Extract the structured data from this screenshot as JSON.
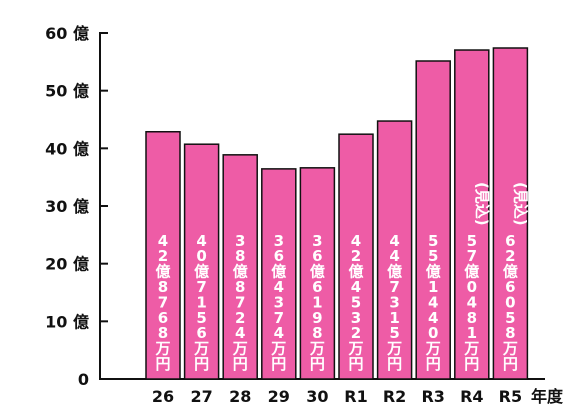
{
  "chart_data": {
    "type": "bar",
    "title": "",
    "xlabel": "年度",
    "ylabel": "",
    "ylim": [
      0,
      60
    ],
    "yticks": [
      {
        "value": 0,
        "label": "0"
      },
      {
        "value": 10,
        "label": "10 億"
      },
      {
        "value": 20,
        "label": "20 億"
      },
      {
        "value": 30,
        "label": "30 億"
      },
      {
        "value": 40,
        "label": "40 億"
      },
      {
        "value": 50,
        "label": "50 億"
      },
      {
        "value": 60,
        "label": "60 億"
      }
    ],
    "categories": [
      "26",
      "27",
      "28",
      "29",
      "30",
      "R1",
      "R2",
      "R3",
      "R4",
      "R5"
    ],
    "values": [
      42.8768,
      40.7156,
      38.8724,
      36.4374,
      36.6198,
      42.4532,
      44.7315,
      55.144,
      57.0481,
      62.6058
    ],
    "bar_labels": [
      {
        "prefix": "",
        "text": "42億8768万円"
      },
      {
        "prefix": "",
        "text": "40億7156万円"
      },
      {
        "prefix": "",
        "text": "38億8724万円"
      },
      {
        "prefix": "",
        "text": "36億4374万円"
      },
      {
        "prefix": "",
        "text": "36億6198万円"
      },
      {
        "prefix": "",
        "text": "42億4532万円"
      },
      {
        "prefix": "",
        "text": "44億7315万円"
      },
      {
        "prefix": "",
        "text": "55億1440万円"
      },
      {
        "prefix": "(見込)",
        "text": "57億0481万円"
      },
      {
        "prefix": "(見込)",
        "text": "62億6058万円"
      }
    ],
    "bar_color": "#ee5ca6",
    "bar_edge_color": "#111111",
    "grid": false
  }
}
